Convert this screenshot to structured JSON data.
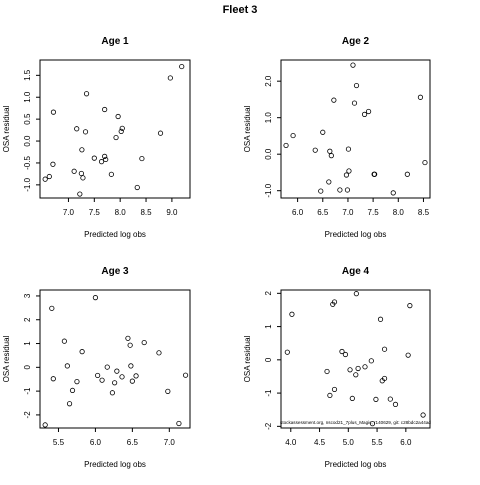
{
  "figure": {
    "title": "Fleet 3"
  },
  "chart_data": [
    {
      "type": "scatter",
      "title": "Age 1",
      "xlabel": "Predicted log obs",
      "ylabel": "OSA residual",
      "xlim": [
        6.45,
        9.35
      ],
      "ylim": [
        -1.3,
        1.85
      ],
      "xticks": [
        7.0,
        7.5,
        8.0,
        8.5,
        9.0
      ],
      "xtick_labels": [
        "7.0",
        "7.5",
        "8.0",
        "8.5",
        "9.0"
      ],
      "yticks": [
        -1.0,
        -0.5,
        0.0,
        0.5,
        1.0,
        1.5
      ],
      "ytick_labels": [
        "-1.0",
        "-0.5",
        "0.0",
        "0.5",
        "1.0",
        "1.5"
      ],
      "points": [
        {
          "x": 6.55,
          "y": -0.87
        },
        {
          "x": 6.63,
          "y": -0.81
        },
        {
          "x": 6.7,
          "y": -0.53
        },
        {
          "x": 6.71,
          "y": 0.66
        },
        {
          "x": 7.11,
          "y": -0.69
        },
        {
          "x": 7.16,
          "y": 0.28
        },
        {
          "x": 7.22,
          "y": -1.21
        },
        {
          "x": 7.25,
          "y": -0.74
        },
        {
          "x": 7.26,
          "y": -0.2
        },
        {
          "x": 7.28,
          "y": -0.84
        },
        {
          "x": 7.33,
          "y": 0.21
        },
        {
          "x": 7.35,
          "y": 1.08
        },
        {
          "x": 7.5,
          "y": -0.39
        },
        {
          "x": 7.64,
          "y": -0.47
        },
        {
          "x": 7.7,
          "y": 0.72
        },
        {
          "x": 7.7,
          "y": -0.35
        },
        {
          "x": 7.72,
          "y": -0.42
        },
        {
          "x": 7.83,
          "y": -0.76
        },
        {
          "x": 7.92,
          "y": 0.08
        },
        {
          "x": 7.96,
          "y": 0.56
        },
        {
          "x": 8.02,
          "y": 0.22
        },
        {
          "x": 8.04,
          "y": 0.29
        },
        {
          "x": 8.33,
          "y": -1.06
        },
        {
          "x": 8.42,
          "y": -0.4
        },
        {
          "x": 8.78,
          "y": 0.18
        },
        {
          "x": 8.97,
          "y": 1.44
        },
        {
          "x": 9.19,
          "y": 1.7
        }
      ]
    },
    {
      "type": "scatter",
      "title": "Age 2",
      "xlabel": "Predicted log obs",
      "ylabel": "OSA residual",
      "xlim": [
        5.67,
        8.63
      ],
      "ylim": [
        -1.2,
        2.58
      ],
      "xticks": [
        6.0,
        6.5,
        7.0,
        7.5,
        8.0,
        8.5
      ],
      "xtick_labels": [
        "6.0",
        "6.5",
        "7.0",
        "7.5",
        "8.0",
        "8.5"
      ],
      "yticks": [
        -1.0,
        0.0,
        1.0,
        2.0
      ],
      "ytick_labels": [
        "-1.0",
        "0.0",
        "1.0",
        "2.0"
      ],
      "points": [
        {
          "x": 5.77,
          "y": 0.24
        },
        {
          "x": 5.91,
          "y": 0.51
        },
        {
          "x": 6.35,
          "y": 0.11
        },
        {
          "x": 6.46,
          "y": -1.01
        },
        {
          "x": 6.5,
          "y": 0.6
        },
        {
          "x": 6.62,
          "y": -0.76
        },
        {
          "x": 6.64,
          "y": 0.08
        },
        {
          "x": 6.67,
          "y": -0.04
        },
        {
          "x": 6.72,
          "y": 1.48
        },
        {
          "x": 6.84,
          "y": -0.98
        },
        {
          "x": 6.97,
          "y": -0.57
        },
        {
          "x": 6.99,
          "y": -0.98
        },
        {
          "x": 7.01,
          "y": 0.14
        },
        {
          "x": 7.02,
          "y": -0.46
        },
        {
          "x": 7.1,
          "y": 2.44
        },
        {
          "x": 7.13,
          "y": 1.4
        },
        {
          "x": 7.17,
          "y": 1.88
        },
        {
          "x": 7.33,
          "y": 1.09
        },
        {
          "x": 7.41,
          "y": 1.17
        },
        {
          "x": 7.52,
          "y": -0.55
        },
        {
          "x": 7.53,
          "y": -0.55
        },
        {
          "x": 7.9,
          "y": -1.06
        },
        {
          "x": 8.18,
          "y": -0.55
        },
        {
          "x": 8.44,
          "y": 1.56
        },
        {
          "x": 8.53,
          "y": -0.23
        }
      ]
    },
    {
      "type": "scatter",
      "title": "Age 3",
      "xlabel": "Predicted log obs",
      "ylabel": "OSA residual",
      "xlim": [
        5.25,
        7.28
      ],
      "ylim": [
        -2.55,
        3.25
      ],
      "xticks": [
        5.5,
        6.0,
        6.5,
        7.0
      ],
      "xtick_labels": [
        "5.5",
        "6.0",
        "6.5",
        "7.0"
      ],
      "yticks": [
        -2,
        -1,
        0,
        1,
        2,
        3
      ],
      "ytick_labels": [
        "-2",
        "-1",
        "0",
        "1",
        "2",
        "3"
      ],
      "points": [
        {
          "x": 5.32,
          "y": -2.42
        },
        {
          "x": 5.41,
          "y": 2.48
        },
        {
          "x": 5.43,
          "y": -0.48
        },
        {
          "x": 5.58,
          "y": 1.1
        },
        {
          "x": 5.62,
          "y": 0.06
        },
        {
          "x": 5.65,
          "y": -1.53
        },
        {
          "x": 5.69,
          "y": -0.97
        },
        {
          "x": 5.75,
          "y": -0.6
        },
        {
          "x": 5.82,
          "y": 0.66
        },
        {
          "x": 6.0,
          "y": 2.93
        },
        {
          "x": 6.03,
          "y": -0.34
        },
        {
          "x": 6.09,
          "y": -0.54
        },
        {
          "x": 6.16,
          "y": 0.01
        },
        {
          "x": 6.23,
          "y": -1.07
        },
        {
          "x": 6.26,
          "y": -0.65
        },
        {
          "x": 6.29,
          "y": -0.16
        },
        {
          "x": 6.36,
          "y": -0.4
        },
        {
          "x": 6.44,
          "y": 1.22
        },
        {
          "x": 6.47,
          "y": 0.93
        },
        {
          "x": 6.48,
          "y": 0.06
        },
        {
          "x": 6.55,
          "y": -0.36
        },
        {
          "x": 6.66,
          "y": 1.04
        },
        {
          "x": 6.86,
          "y": 0.61
        },
        {
          "x": 6.98,
          "y": -1.01
        },
        {
          "x": 7.13,
          "y": -2.36
        },
        {
          "x": 7.22,
          "y": -0.33
        },
        {
          "x": 6.5,
          "y": -0.58
        }
      ]
    },
    {
      "type": "scatter",
      "title": "Age 4",
      "xlabel": "Predicted log obs",
      "ylabel": "OSA residual",
      "xlim": [
        3.83,
        6.42
      ],
      "ylim": [
        -2.05,
        2.1
      ],
      "xticks": [
        4.0,
        4.5,
        5.0,
        5.5,
        6.0
      ],
      "xtick_labels": [
        "4.0",
        "4.5",
        "5.0",
        "5.5",
        "6.0"
      ],
      "yticks": [
        -2,
        -1,
        0,
        1,
        2
      ],
      "ytick_labels": [
        "-2",
        "-1",
        "0",
        "1",
        "2"
      ],
      "annotation": "stockassessment.org, nscod21_7plus_Magic, r140629, git: c28bdc2a44ad",
      "points": [
        {
          "x": 3.94,
          "y": 0.23
        },
        {
          "x": 4.02,
          "y": 1.37
        },
        {
          "x": 4.63,
          "y": -0.35
        },
        {
          "x": 4.68,
          "y": -1.07
        },
        {
          "x": 4.73,
          "y": 1.67
        },
        {
          "x": 4.76,
          "y": 1.74
        },
        {
          "x": 4.76,
          "y": -0.89
        },
        {
          "x": 4.89,
          "y": 0.25
        },
        {
          "x": 4.95,
          "y": 0.16
        },
        {
          "x": 5.03,
          "y": -0.3
        },
        {
          "x": 5.07,
          "y": -1.16
        },
        {
          "x": 5.14,
          "y": 1.99
        },
        {
          "x": 5.13,
          "y": -0.45
        },
        {
          "x": 5.17,
          "y": -0.26
        },
        {
          "x": 5.29,
          "y": -0.21
        },
        {
          "x": 5.4,
          "y": -0.03
        },
        {
          "x": 5.42,
          "y": -1.92
        },
        {
          "x": 5.48,
          "y": -1.19
        },
        {
          "x": 5.56,
          "y": 1.22
        },
        {
          "x": 5.59,
          "y": -0.63
        },
        {
          "x": 5.63,
          "y": 0.32
        },
        {
          "x": 5.63,
          "y": -0.56
        },
        {
          "x": 5.73,
          "y": -1.18
        },
        {
          "x": 5.82,
          "y": -1.34
        },
        {
          "x": 6.04,
          "y": 0.14
        },
        {
          "x": 6.07,
          "y": 1.63
        },
        {
          "x": 6.3,
          "y": -1.66
        }
      ]
    }
  ]
}
